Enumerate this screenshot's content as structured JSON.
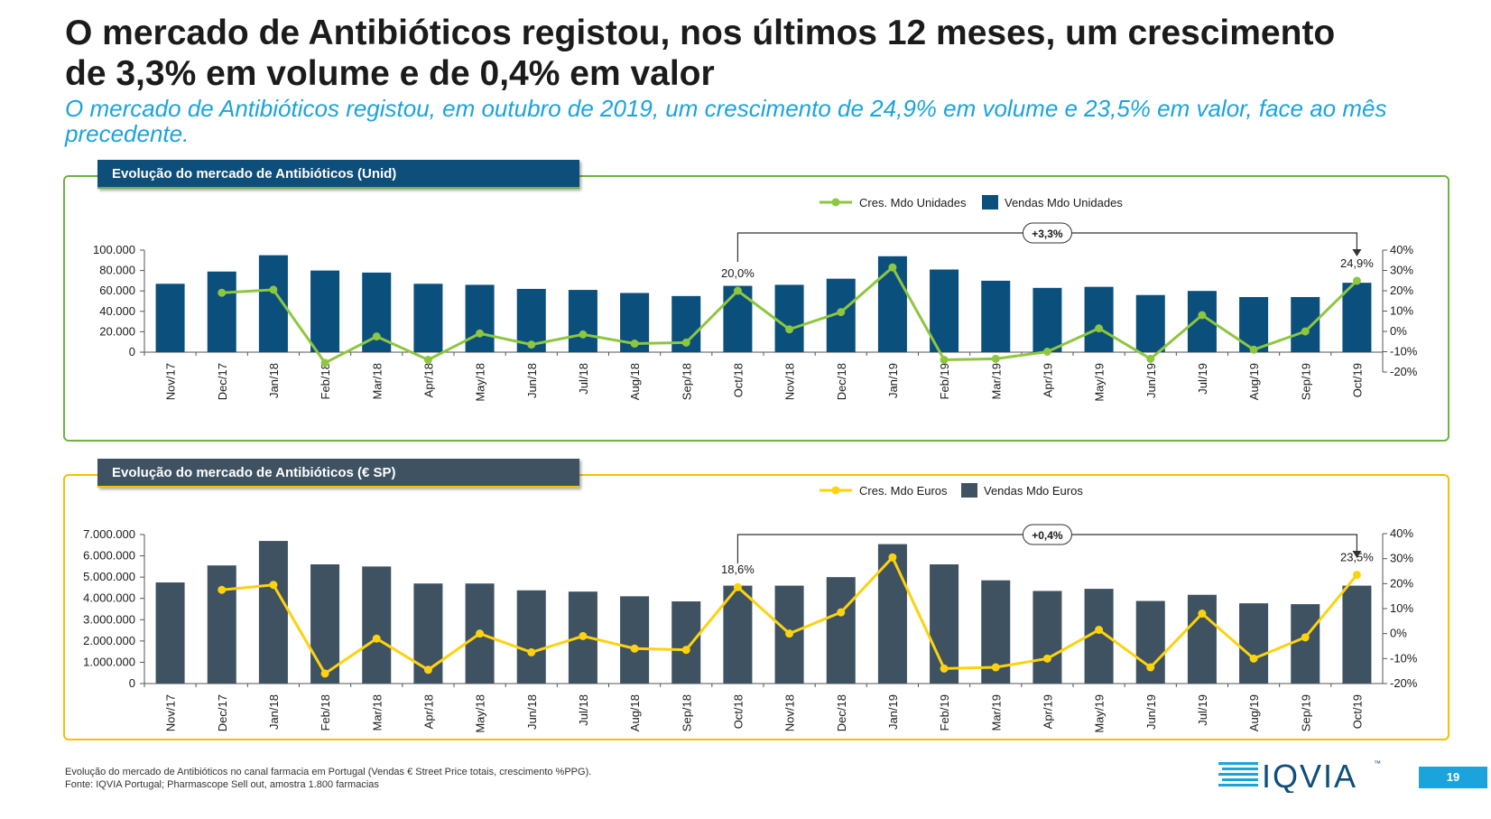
{
  "slide": {
    "title_line1": "O mercado de Antibióticos registou, nos últimos 12 meses, um crescimento",
    "title_line2": "de 3,3% em volume e de 0,4% em valor",
    "subtitle": "O mercado de Antibióticos registou, em outubro de 2019, um crescimento de 24,9% em volume e 23,5% em valor, face ao mês precedente.",
    "footer_line1": "Evolução do mercado de Antibióticos no canal farmacia em Portugal (Vendas € Street Price totais, crescimento %PPG).",
    "footer_line2": "Fonte: IQVIA Portugal; Pharmascope Sell out, amostra 1.800 farmacias",
    "logo_text": "IQVIA",
    "logo_tm": "™",
    "page_number": "19"
  },
  "colors": {
    "units_bar": "#0b4f7d",
    "units_line": "#8dc63f",
    "units_border": "#6db33f",
    "euros_bar": "#3e5262",
    "euros_line": "#fdd20e",
    "euros_border": "#f3c200",
    "accent": "#1ba3dc"
  },
  "chart_data": [
    {
      "type": "bar",
      "title": "Evolução do mercado de Antibióticos (Unid)",
      "categories": [
        "Nov/17",
        "Dec/17",
        "Jan/18",
        "Feb/18",
        "Mar/18",
        "Apr/18",
        "May/18",
        "Jun/18",
        "Jul/18",
        "Aug/18",
        "Sep/18",
        "Oct/18",
        "Nov/18",
        "Dec/18",
        "Jan/19",
        "Feb/19",
        "Mar/19",
        "Apr/19",
        "May/19",
        "Jun/19",
        "Jul/19",
        "Aug/19",
        "Sep/19",
        "Oct/19"
      ],
      "series": [
        {
          "name": "Vendas Mdo Unidades",
          "type": "bar",
          "axis": "left",
          "values": [
            67000,
            79000,
            95000,
            80000,
            78000,
            67000,
            66000,
            62000,
            61000,
            58000,
            55000,
            65000,
            66000,
            72000,
            94000,
            81000,
            70000,
            63000,
            64000,
            56000,
            60000,
            54000,
            54000,
            68000
          ]
        },
        {
          "name": "Cres. Mdo Unidades",
          "type": "line",
          "axis": "right",
          "values": [
            null,
            19.0,
            20.5,
            -15.5,
            -2.5,
            -14.0,
            -1.0,
            -6.5,
            -1.5,
            -6.0,
            -5.5,
            20.0,
            1.0,
            9.5,
            31.5,
            -14.0,
            -13.5,
            -10.0,
            1.5,
            -13.5,
            8.0,
            -9.0,
            0.0,
            24.9
          ]
        }
      ],
      "ylim": [
        0,
        100000
      ],
      "yticks": [
        "0",
        "20.000",
        "40.000",
        "60.000",
        "80.000",
        "100.000"
      ],
      "y2lim": [
        -20,
        40
      ],
      "y2ticks": [
        "-20%",
        "-10%",
        "0%",
        "10%",
        "20%",
        "30%",
        "40%"
      ],
      "annotations": {
        "start_label": "20,0%",
        "end_label": "24,9%",
        "bracket_label": "+3,3%"
      },
      "legend": {
        "position": "top-right",
        "line_label": "Cres. Mdo Unidades",
        "bar_label": "Vendas Mdo Unidades"
      }
    },
    {
      "type": "bar",
      "title": "Evolução do mercado de Antibióticos (€ SP)",
      "categories": [
        "Nov/17",
        "Dec/17",
        "Jan/18",
        "Feb/18",
        "Mar/18",
        "Apr/18",
        "May/18",
        "Jun/18",
        "Jul/18",
        "Aug/18",
        "Sep/18",
        "Oct/18",
        "Nov/18",
        "Dec/18",
        "Jan/19",
        "Feb/19",
        "Mar/19",
        "Apr/19",
        "May/19",
        "Jun/19",
        "Jul/19",
        "Aug/19",
        "Sep/19",
        "Oct/19"
      ],
      "series": [
        {
          "name": "Vendas Mdo Euros",
          "type": "bar",
          "axis": "left",
          "values": [
            4750000,
            5550000,
            6700000,
            5600000,
            5500000,
            4700000,
            4700000,
            4380000,
            4320000,
            4100000,
            3860000,
            4600000,
            4600000,
            5000000,
            6550000,
            5600000,
            4850000,
            4350000,
            4450000,
            3880000,
            4170000,
            3770000,
            3730000,
            4600000
          ]
        },
        {
          "name": "Cres. Mdo Euros",
          "type": "line",
          "axis": "right",
          "values": [
            null,
            17.5,
            19.5,
            -16.0,
            -2.0,
            -14.5,
            0.0,
            -7.5,
            -1.0,
            -6.0,
            -6.5,
            18.6,
            0.0,
            8.5,
            30.5,
            -14.0,
            -13.5,
            -10.0,
            1.5,
            -13.5,
            8.0,
            -10.0,
            -1.5,
            23.5
          ]
        }
      ],
      "ylim": [
        0,
        7000000
      ],
      "yticks": [
        "0",
        "1.000.000",
        "2.000.000",
        "3.000.000",
        "4.000.000",
        "5.000.000",
        "6.000.000",
        "7.000.000"
      ],
      "y2lim": [
        -20,
        40
      ],
      "y2ticks": [
        "-20%",
        "-10%",
        "0%",
        "10%",
        "20%",
        "30%",
        "40%"
      ],
      "annotations": {
        "start_label": "18,6%",
        "end_label": "23,5%",
        "bracket_label": "+0,4%"
      },
      "legend": {
        "position": "top-right",
        "line_label": "Cres. Mdo Euros",
        "bar_label": "Vendas Mdo Euros"
      }
    }
  ]
}
